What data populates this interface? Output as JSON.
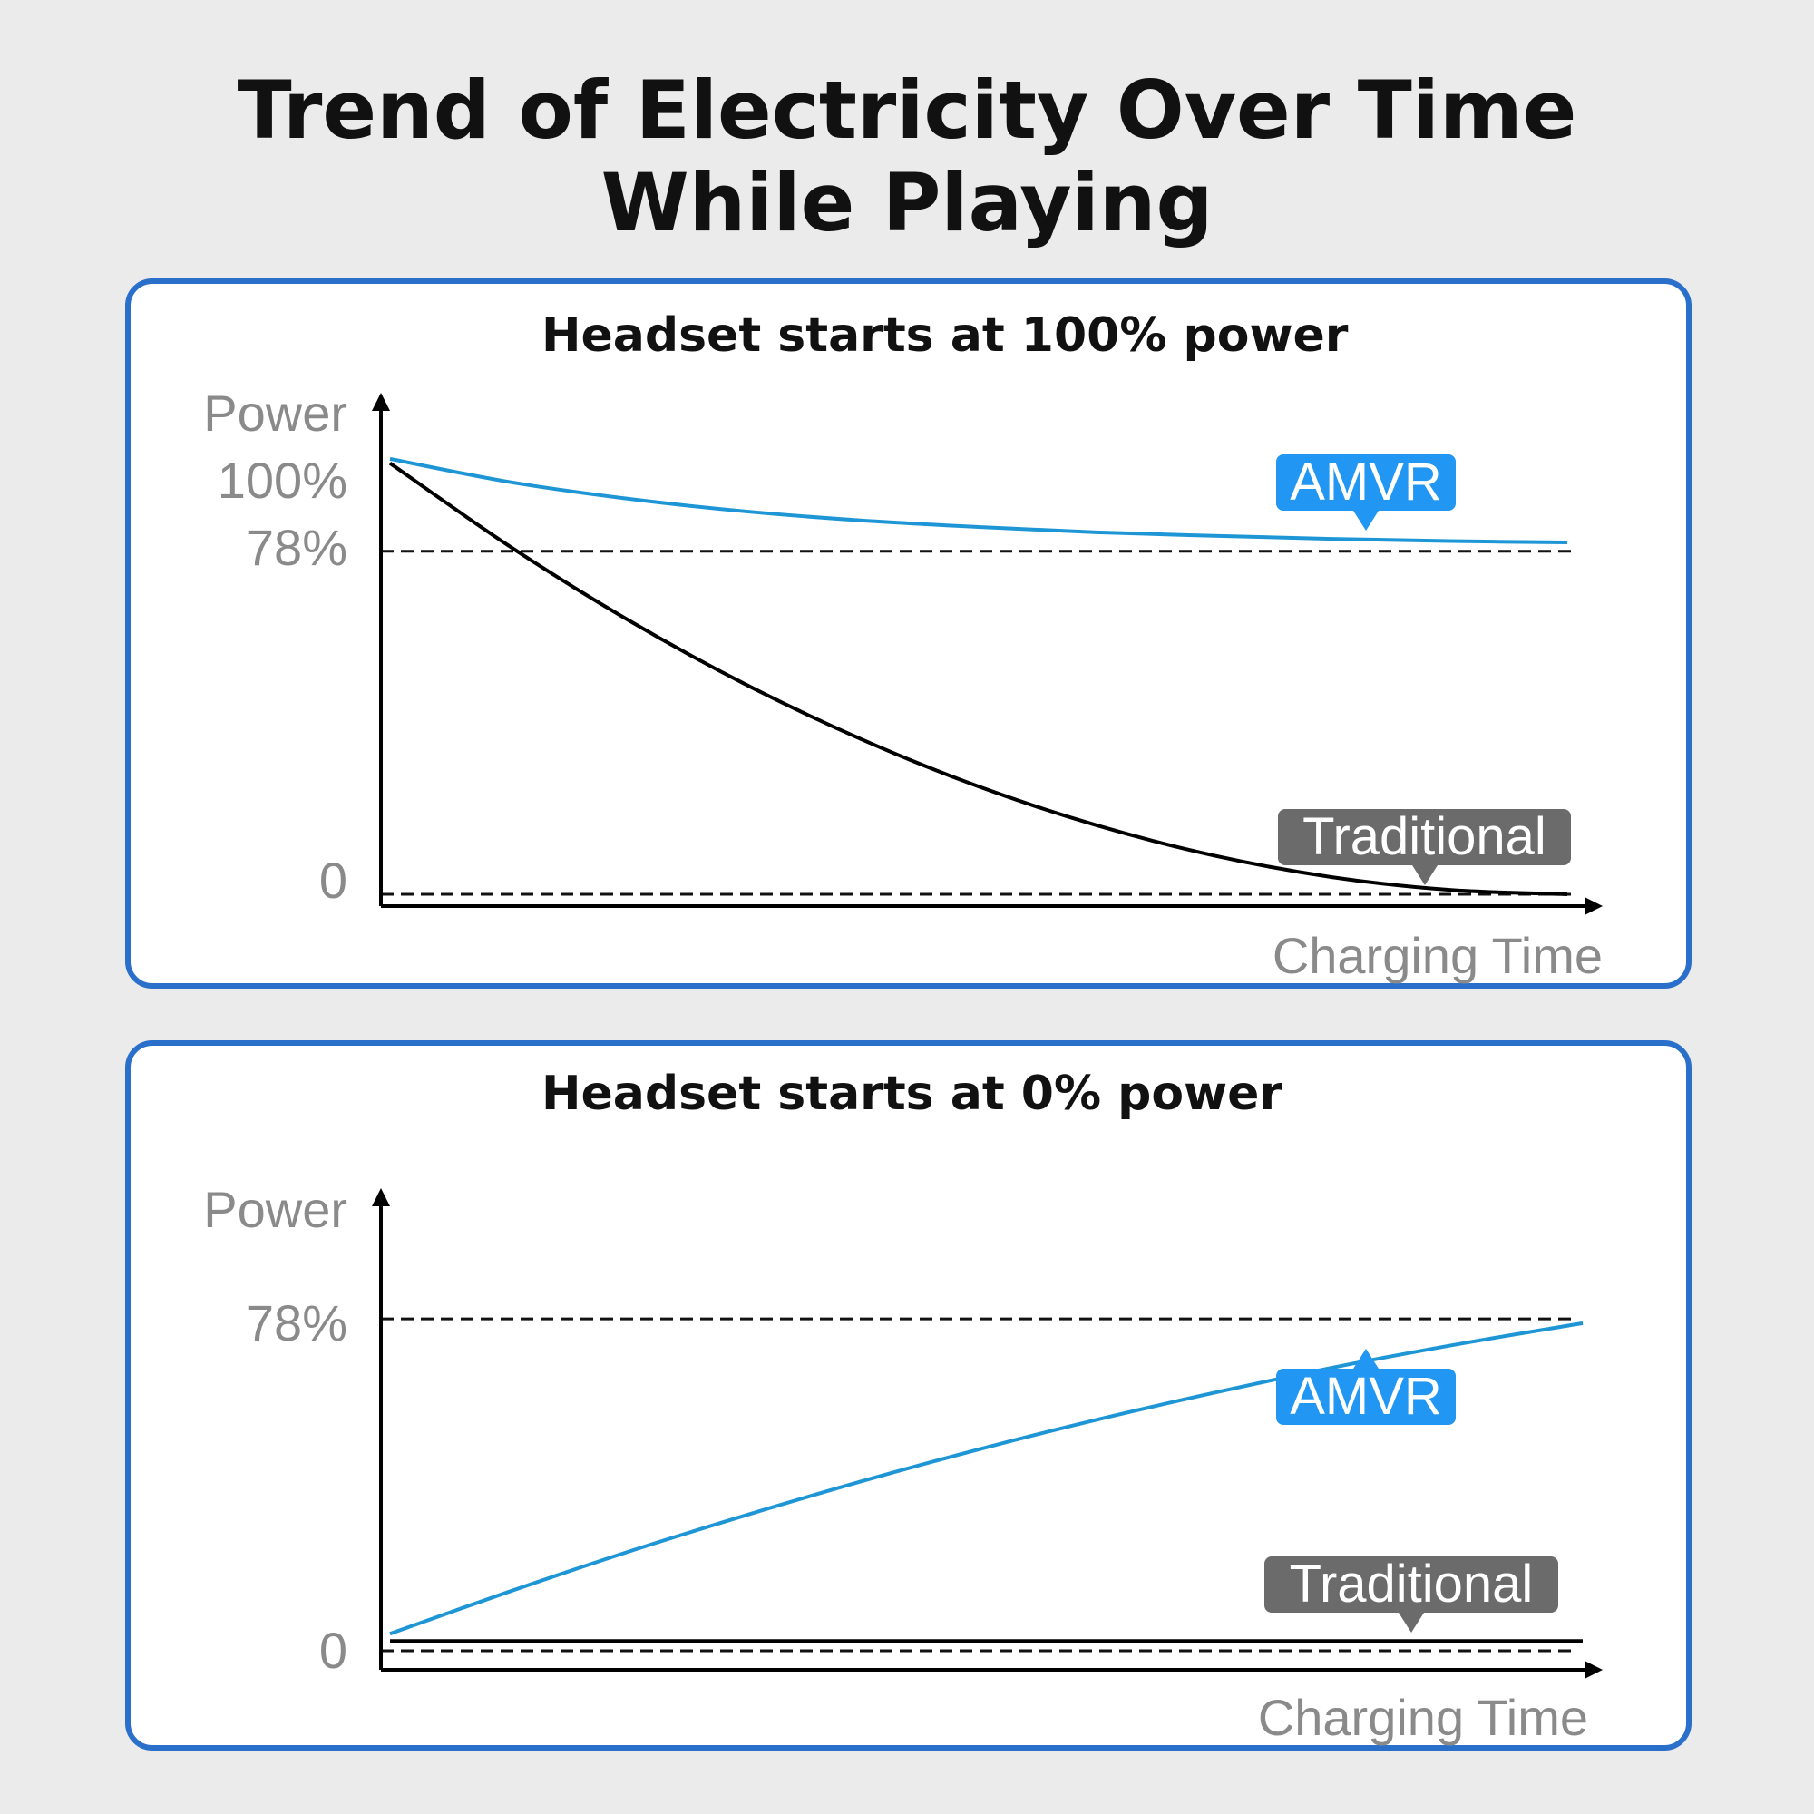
{
  "title_line1": "Trend of Electricity Over Time",
  "title_line2": "While Playing",
  "colors": {
    "amvr_line": "#1e96d6",
    "amvr_badge": "#2196f3",
    "traditional": "#6b6b6b",
    "panel_border": "#2a6fc9"
  },
  "chart_data": [
    {
      "type": "line",
      "title": "Headset starts at 100% power",
      "ylabel": "Power",
      "xlabel": "Charging Time",
      "yticks": [
        "100%",
        "78%",
        "0"
      ],
      "reference_lines": [
        78,
        0
      ],
      "ylim": [
        0,
        100
      ],
      "x": [
        0,
        0.1,
        0.2,
        0.3,
        0.4,
        0.5,
        0.6,
        0.7,
        0.8,
        0.9,
        1
      ],
      "series": [
        {
          "name": "AMVR",
          "values": [
            99,
            93.8,
            90,
            87.1,
            85,
            83.5,
            82.3,
            81.5,
            80.8,
            80.3,
            80
          ]
        },
        {
          "name": "Traditional",
          "values": [
            98,
            79.4,
            62.7,
            48,
            35.3,
            24.5,
            15.7,
            8.8,
            3.9,
            1,
            0
          ]
        }
      ]
    },
    {
      "type": "line",
      "title": "Headset starts at 0% power",
      "ylabel": "Power",
      "xlabel": "Charging Time",
      "yticks": [
        "78%",
        "0"
      ],
      "reference_lines": [
        78,
        0
      ],
      "ylim": [
        0,
        78
      ],
      "x": [
        0,
        0.1,
        0.2,
        0.3,
        0.4,
        0.5,
        0.6,
        0.7,
        0.8,
        0.9,
        1
      ],
      "series": [
        {
          "name": "AMVR",
          "values": [
            4,
            13.9,
            23.3,
            32,
            40.2,
            47.8,
            54.8,
            61.2,
            67.1,
            72.3,
            77
          ]
        },
        {
          "name": "Traditional",
          "values": [
            2.3,
            2.3,
            2.3,
            2.3,
            2.3,
            2.3,
            2.3,
            2.3,
            2.3,
            2.3,
            2.3
          ]
        }
      ]
    }
  ]
}
